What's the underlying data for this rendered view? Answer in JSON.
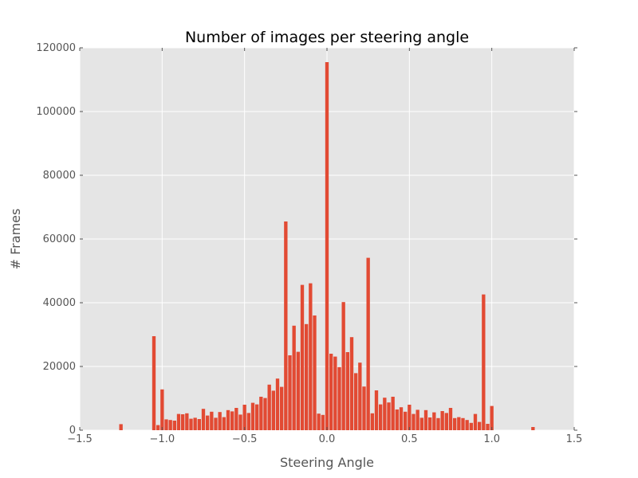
{
  "chart_data": {
    "type": "bar",
    "title": "Number of images per steering angle",
    "xlabel": "Steering Angle",
    "ylabel": "# Frames",
    "xlim": [
      -1.5,
      1.5
    ],
    "ylim": [
      0,
      120000
    ],
    "xticks": [
      "−1.5",
      "−1.0",
      "−0.5",
      "0.0",
      "0.5",
      "1.0",
      "1.5"
    ],
    "yticks": [
      "0",
      "20000",
      "40000",
      "60000",
      "80000",
      "100000",
      "120000"
    ],
    "grid": true,
    "bar_width": 0.021,
    "colors": {
      "bar": "#e24a33",
      "plot_background": "#e5e5e5",
      "grid": "#ffffff"
    },
    "x": [
      -1.25,
      -1.05,
      -1.025,
      -1.0,
      -0.975,
      -0.95,
      -0.925,
      -0.9,
      -0.875,
      -0.85,
      -0.825,
      -0.8,
      -0.775,
      -0.75,
      -0.725,
      -0.7,
      -0.675,
      -0.65,
      -0.625,
      -0.6,
      -0.575,
      -0.55,
      -0.525,
      -0.5,
      -0.475,
      -0.45,
      -0.425,
      -0.4,
      -0.375,
      -0.35,
      -0.325,
      -0.3,
      -0.275,
      -0.25,
      -0.225,
      -0.2,
      -0.175,
      -0.15,
      -0.125,
      -0.1,
      -0.075,
      -0.05,
      -0.025,
      0.0,
      0.025,
      0.05,
      0.075,
      0.1,
      0.125,
      0.15,
      0.175,
      0.2,
      0.225,
      0.25,
      0.275,
      0.3,
      0.325,
      0.35,
      0.375,
      0.4,
      0.425,
      0.45,
      0.475,
      0.5,
      0.525,
      0.55,
      0.575,
      0.6,
      0.625,
      0.65,
      0.675,
      0.7,
      0.725,
      0.75,
      0.775,
      0.8,
      0.825,
      0.85,
      0.875,
      0.9,
      0.925,
      0.95,
      0.975,
      1.0,
      1.25
    ],
    "values": [
      1900,
      29500,
      1600,
      12800,
      3400,
      3200,
      3000,
      5100,
      5000,
      5300,
      3600,
      3900,
      3500,
      6700,
      4600,
      5800,
      3900,
      5700,
      4100,
      6300,
      5900,
      7000,
      4900,
      8000,
      5400,
      8600,
      8100,
      10500,
      10100,
      14300,
      12400,
      16200,
      13600,
      65500,
      23500,
      32800,
      24600,
      45600,
      33300,
      46100,
      36000,
      5200,
      4800,
      115500,
      24000,
      23100,
      19800,
      40200,
      24500,
      29200,
      17900,
      21200,
      13700,
      54100,
      5300,
      12500,
      8100,
      10200,
      8700,
      10500,
      6500,
      7200,
      5800,
      8000,
      5100,
      6400,
      3900,
      6300,
      4000,
      5600,
      3800,
      6000,
      5400,
      7000,
      3800,
      4100,
      3800,
      3200,
      2300,
      5100,
      2600,
      42600,
      2000,
      7600,
      1000
    ]
  }
}
